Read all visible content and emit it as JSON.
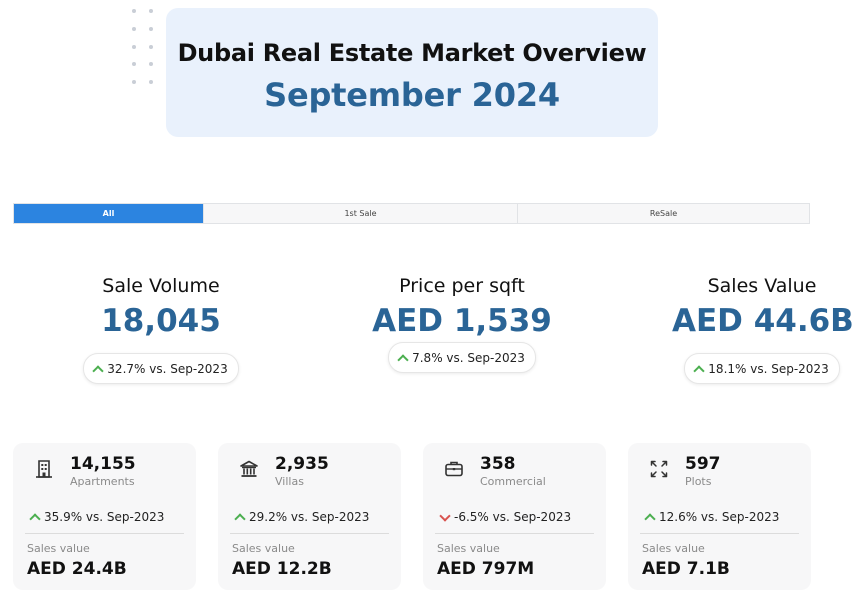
{
  "header": {
    "title": "Dubai Real Estate Market Overview",
    "subtitle": "September 2024"
  },
  "tabs": [
    {
      "label": "All",
      "active": true
    },
    {
      "label": "1st Sale",
      "active": false
    },
    {
      "label": "ReSale",
      "active": false
    }
  ],
  "kpis": [
    {
      "label": "Sale Volume",
      "value": "18,045",
      "change": "32.7% vs. Sep-2023",
      "direction": "up"
    },
    {
      "label": "Price per sqft",
      "value": "AED 1,539",
      "change": "7.8% vs. Sep-2023",
      "direction": "up"
    },
    {
      "label": "Sales Value",
      "value": "AED 44.6B",
      "change": "18.1% vs. Sep-2023",
      "direction": "up"
    }
  ],
  "cards": [
    {
      "icon": "apartment-building-icon",
      "count": "14,155",
      "type": "Apartments",
      "change": "35.9% vs. Sep-2023",
      "direction": "up",
      "sales_value_label": "Sales value",
      "sales_value": "AED 24.4B"
    },
    {
      "icon": "villa-icon",
      "count": "2,935",
      "type": "Villas",
      "change": "29.2% vs. Sep-2023",
      "direction": "up",
      "sales_value_label": "Sales value",
      "sales_value": "AED 12.2B"
    },
    {
      "icon": "briefcase-icon",
      "count": "358",
      "type": "Commercial",
      "change": "-6.5% vs. Sep-2023",
      "direction": "down",
      "sales_value_label": "Sales value",
      "sales_value": "AED 797M"
    },
    {
      "icon": "expand-arrows-icon",
      "count": "597",
      "type": "Plots",
      "change": "12.6% vs. Sep-2023",
      "direction": "up",
      "sales_value_label": "Sales value",
      "sales_value": "AED 7.1B"
    }
  ],
  "colors": {
    "accent_blue": "#2a6496",
    "tab_active": "#2c84e0",
    "up_green": "#4caf50",
    "down_red": "#d9534f",
    "title_card_bg": "#e9f1fc",
    "card_bg": "#f7f7f8"
  }
}
